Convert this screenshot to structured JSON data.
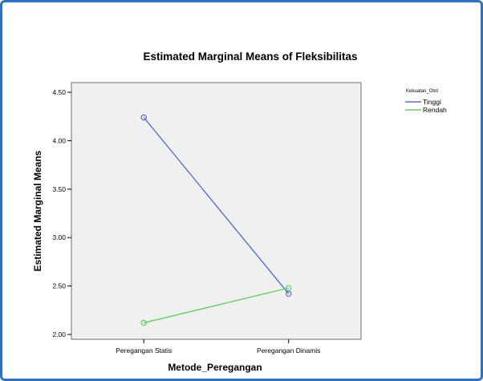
{
  "chart_data": {
    "type": "line",
    "title": "Estimated Marginal Means of Fleksibilitas",
    "xlabel": "Metode_Peregangan",
    "ylabel": "Estimated Marginal Means",
    "categories": [
      "Peregangan Statis",
      "Peregangan Dinamis"
    ],
    "ylim": [
      1.95,
      4.6
    ],
    "yticks": [
      2.0,
      2.5,
      3.0,
      3.5,
      4.0,
      4.5
    ],
    "ytick_labels": [
      "2.00",
      "2.50",
      "3.00",
      "3.50",
      "4.00",
      "4.50"
    ],
    "legend": {
      "title": "Kekuatan_Otot",
      "placement": "right"
    },
    "grid": false,
    "series": [
      {
        "name": "Tinggi",
        "color": "#5b6fcc",
        "values": [
          4.24,
          2.42
        ]
      },
      {
        "name": "Rendah",
        "color": "#5cd35c",
        "values": [
          2.12,
          2.48
        ]
      }
    ]
  },
  "colors": {
    "frame": "#2b73c9",
    "plot_background": "#f0f0f0"
  }
}
